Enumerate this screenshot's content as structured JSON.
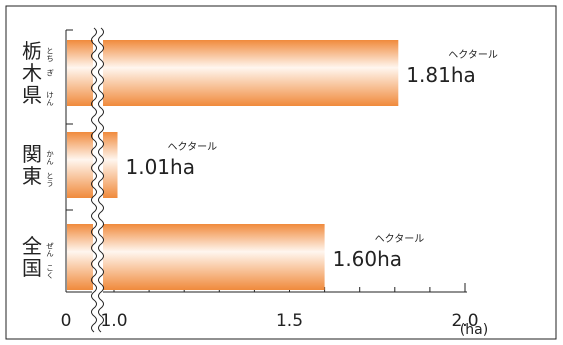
{
  "chart_data": {
    "type": "bar",
    "orientation": "horizontal",
    "axis_break": true,
    "categories": [
      {
        "label": "栃木県",
        "lines": [
          "栃",
          "木",
          "県"
        ],
        "ruby": [
          "とち",
          "ぎ",
          "けん"
        ]
      },
      {
        "label": "関東",
        "lines": [
          "関",
          "東"
        ],
        "ruby": [
          "かん",
          "とう"
        ]
      },
      {
        "label": "全国",
        "lines": [
          "全",
          "国"
        ],
        "ruby": [
          "ぜん",
          "こく"
        ]
      }
    ],
    "values": [
      1.81,
      1.01,
      1.6
    ],
    "value_labels": [
      "1.81ha",
      "1.01ha",
      "1.60ha"
    ],
    "value_unit_ruby": "ヘクタール",
    "x_ticks": [
      "0",
      "1.0",
      "1.5",
      "2.0"
    ],
    "x_unit": "(ha)",
    "xlim": [
      1.0,
      2.0
    ],
    "bar_color_edge": "#f08a3c",
    "bar_color_center": "#fff6ef"
  }
}
